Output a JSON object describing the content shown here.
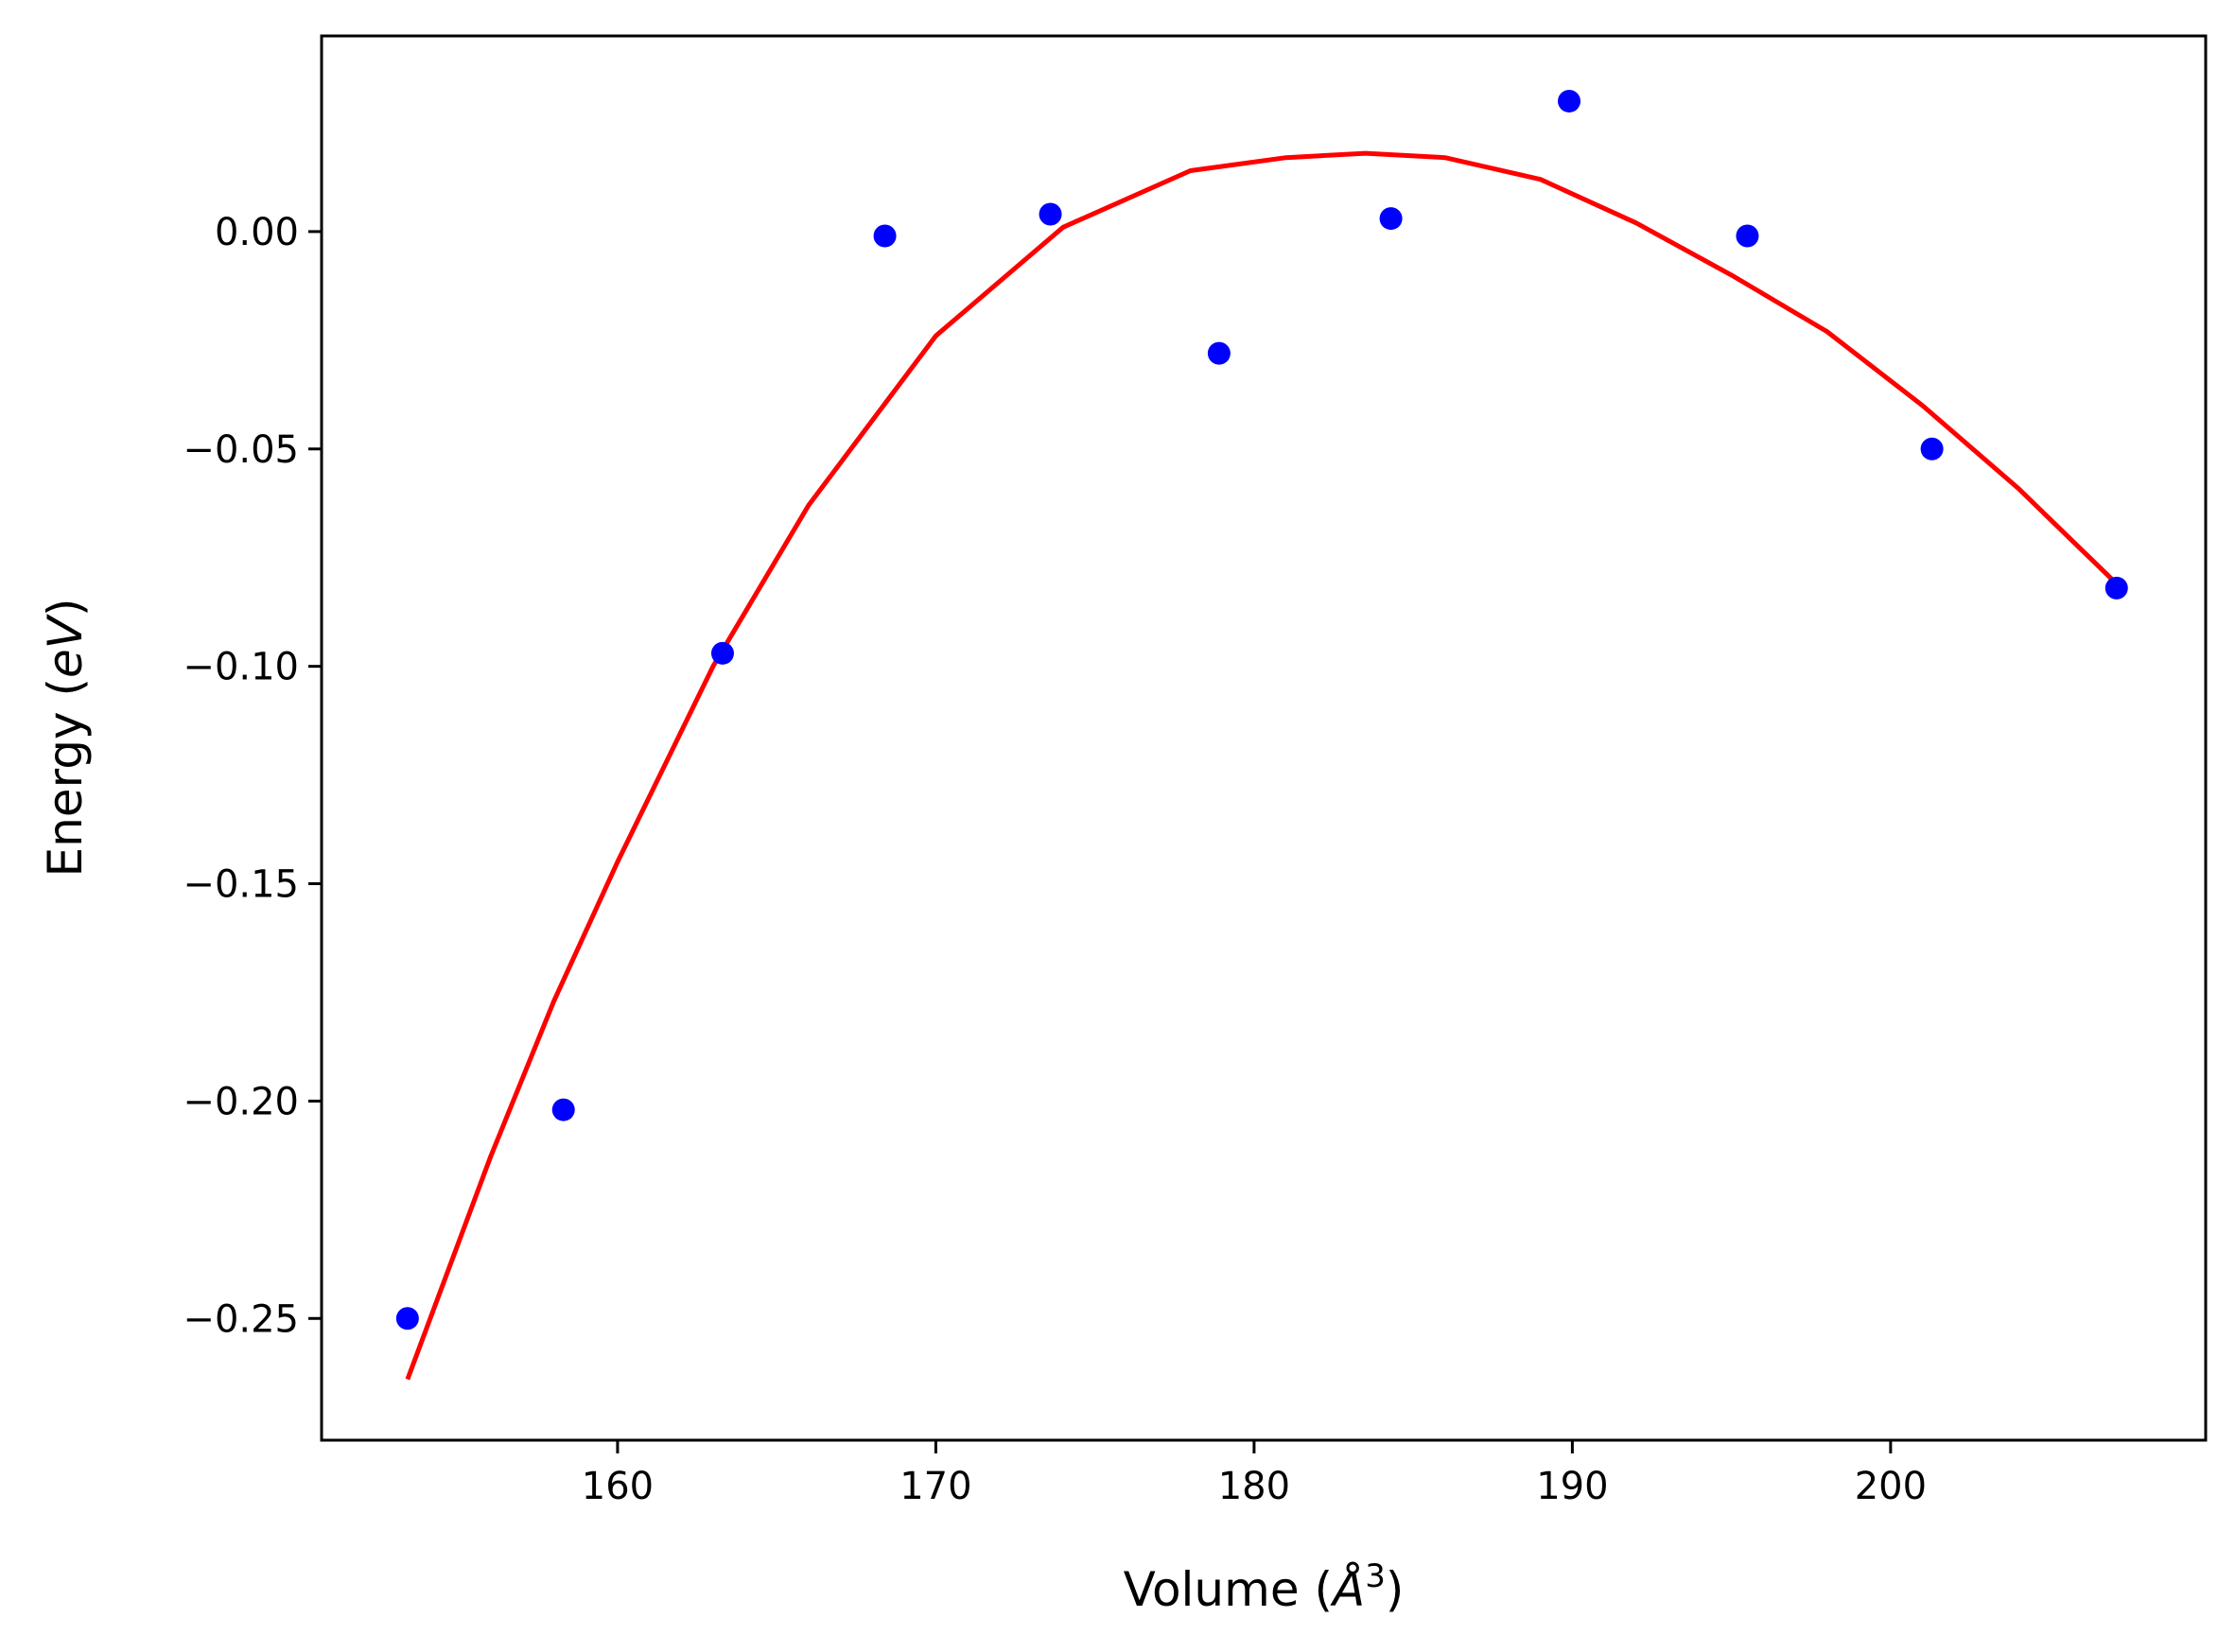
{
  "chart_data": {
    "type": "scatter",
    "xlabel": "Volume (Å³)",
    "xlabel_parts": {
      "prefix": "Volume (",
      "italic": "Å",
      "sup": "3",
      "suffix": ")"
    },
    "ylabel": "Energy (eV)",
    "ylabel_parts": {
      "prefix": "Energy (",
      "italic": "eV",
      "suffix": ")"
    },
    "xlim": [
      150.7,
      209.9
    ],
    "ylim": [
      -0.278,
      0.045
    ],
    "xticks": [
      160,
      170,
      180,
      190,
      200
    ],
    "xtick_labels": [
      "160",
      "170",
      "180",
      "190",
      "200"
    ],
    "yticks": [
      0.0,
      -0.05,
      -0.1,
      -0.15,
      -0.2,
      -0.25
    ],
    "ytick_labels": [
      "0.00",
      "−0.05",
      "−0.10",
      "−0.15",
      "−0.20",
      "−0.25"
    ],
    "grid": false,
    "series": [
      {
        "kind": "points",
        "color": "#0000ff",
        "x": [
          153.4,
          158.3,
          163.3,
          168.4,
          173.6,
          178.9,
          184.3,
          189.9,
          195.5,
          201.3,
          207.1
        ],
        "y": [
          -0.25,
          -0.202,
          -0.097,
          -0.001,
          0.004,
          -0.028,
          0.003,
          0.03,
          -0.001,
          -0.05,
          -0.082
        ]
      },
      {
        "kind": "fit_curve",
        "color": "#ff0000",
        "x": [
          153.4,
          156.0,
          158.0,
          160.0,
          163.0,
          166.0,
          170.0,
          174.0,
          178.0,
          181.0,
          183.5,
          186.0,
          189.0,
          192.0,
          195.0,
          198.0,
          201.0,
          204.0,
          207.1
        ],
        "y": [
          -0.264,
          -0.213,
          -0.177,
          -0.145,
          -0.1,
          -0.063,
          -0.024,
          0.001,
          0.014,
          0.017,
          0.018,
          0.017,
          0.012,
          0.002,
          -0.01,
          -0.023,
          -0.04,
          -0.059,
          -0.081
        ]
      }
    ]
  }
}
